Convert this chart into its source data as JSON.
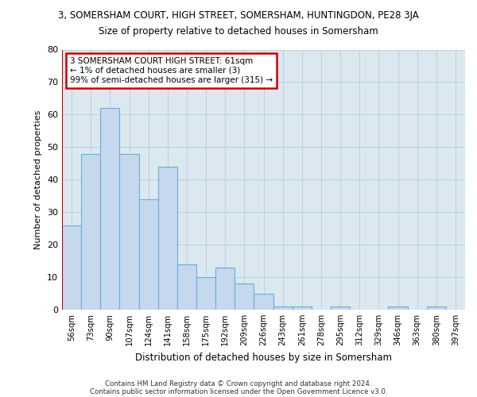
{
  "title_top": "3, SOMERSHAM COURT, HIGH STREET, SOMERSHAM, HUNTINGDON, PE28 3JA",
  "title_sub": "Size of property relative to detached houses in Somersham",
  "xlabel": "Distribution of detached houses by size in Somersham",
  "ylabel": "Number of detached properties",
  "categories": [
    "56sqm",
    "73sqm",
    "90sqm",
    "107sqm",
    "124sqm",
    "141sqm",
    "158sqm",
    "175sqm",
    "192sqm",
    "209sqm",
    "226sqm",
    "243sqm",
    "261sqm",
    "278sqm",
    "295sqm",
    "312sqm",
    "329sqm",
    "346sqm",
    "363sqm",
    "380sqm",
    "397sqm"
  ],
  "values": [
    26,
    48,
    62,
    48,
    34,
    44,
    14,
    10,
    13,
    8,
    5,
    1,
    1,
    0,
    1,
    0,
    0,
    1,
    0,
    1,
    0
  ],
  "bar_face_color": "#c5d8ed",
  "bar_edge_color": "#6aaed6",
  "annotation_text": "3 SOMERSHAM COURT HIGH STREET: 61sqm\n← 1% of detached houses are smaller (3)\n99% of semi-detached houses are larger (315) →",
  "annotation_box_color": "#ffffff",
  "annotation_box_edge": "#cc0000",
  "grid_color": "#b8cfe0",
  "background_color": "#dce8f0",
  "ylim": [
    0,
    80
  ],
  "yticks": [
    0,
    10,
    20,
    30,
    40,
    50,
    60,
    70,
    80
  ],
  "footer_line1": "Contains HM Land Registry data © Crown copyright and database right 2024.",
  "footer_line2": "Contains public sector information licensed under the Open Government Licence v3.0.",
  "vline_color": "#cc0000"
}
